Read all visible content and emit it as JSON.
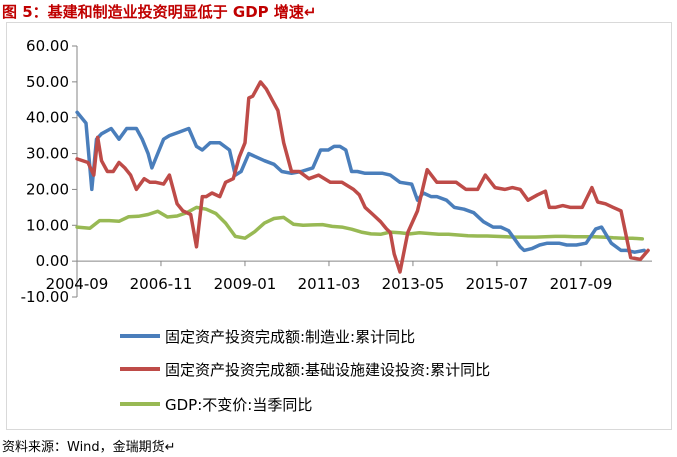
{
  "figure_title": "图 5：基建和制造业投资明显低于 GDP 增速↵",
  "source_note": "资料来源：Wind，金瑞期货↵",
  "chart_data": {
    "type": "line",
    "title": "",
    "xlabel": "",
    "ylabel": "",
    "ylim": [
      -10,
      60
    ],
    "yticks": [
      -10,
      0,
      10,
      20,
      30,
      40,
      50,
      60
    ],
    "ytick_labels": [
      "-10.00",
      "0.00",
      "10.00",
      "20.00",
      "30.00",
      "40.00",
      "50.00",
      "60.00"
    ],
    "xlim": [
      2004.667,
      2019.5
    ],
    "xticks": [
      2004.667,
      2006.833,
      2009.0,
      2011.167,
      2013.333,
      2015.5,
      2017.667
    ],
    "xtick_labels": [
      "2004-09",
      "2006-11",
      "2009-01",
      "2011-03",
      "2013-05",
      "2015-07",
      "2017-09"
    ],
    "grid": false,
    "legend_position": "bottom",
    "series": [
      {
        "name": "固定资产投资完成额:制造业:累计同比",
        "color": "#4a7ebb",
        "x": [
          2004.67,
          2004.9,
          2005.05,
          2005.17,
          2005.3,
          2005.55,
          2005.75,
          2005.95,
          2006.2,
          2006.35,
          2006.5,
          2006.6,
          2006.75,
          2006.9,
          2007.05,
          2007.3,
          2007.55,
          2007.75,
          2007.9,
          2008.1,
          2008.35,
          2008.6,
          2008.75,
          2008.9,
          2009.1,
          2009.3,
          2009.5,
          2009.75,
          2009.95,
          2010.2,
          2010.45,
          2010.75,
          2010.95,
          2011.15,
          2011.3,
          2011.45,
          2011.6,
          2011.75,
          2011.9,
          2012.1,
          2012.3,
          2012.55,
          2012.75,
          2013.0,
          2013.3,
          2013.45,
          2013.6,
          2013.8,
          2013.95,
          2014.2,
          2014.4,
          2014.65,
          2014.9,
          2015.15,
          2015.4,
          2015.6,
          2015.8,
          2016.1,
          2016.2,
          2016.4,
          2016.6,
          2016.8,
          2017.1,
          2017.3,
          2017.55,
          2017.8,
          2018.05,
          2018.2,
          2018.45,
          2018.7,
          2018.85,
          2019.05,
          2019.3
        ],
        "y": [
          41.5,
          38.5,
          20,
          34,
          35.5,
          37,
          34,
          37,
          37,
          34,
          30,
          26,
          30,
          34,
          35,
          36,
          37,
          32,
          31,
          33,
          33,
          31,
          24,
          25,
          30,
          29,
          28,
          27,
          25,
          24.5,
          25,
          26,
          31,
          31,
          32,
          32,
          31,
          25,
          25,
          24.5,
          24.5,
          24.5,
          24,
          22,
          21.5,
          17,
          19,
          18,
          18,
          17,
          15,
          14.5,
          13.5,
          11,
          9.5,
          9.5,
          8.5,
          4,
          3,
          3.5,
          4.5,
          5,
          5,
          4.5,
          4.5,
          5,
          9,
          9.5,
          5,
          3,
          3,
          2.5,
          3
        ]
      },
      {
        "name": "固定资产投资完成额:基础设施建设投资:累计同比",
        "color": "#be4b48",
        "x": [
          2004.67,
          2004.95,
          2005.1,
          2005.2,
          2005.3,
          2005.45,
          2005.6,
          2005.75,
          2005.9,
          2006.05,
          2006.2,
          2006.4,
          2006.55,
          2006.7,
          2006.9,
          2007.05,
          2007.25,
          2007.4,
          2007.6,
          2007.75,
          2007.9,
          2008.0,
          2008.15,
          2008.35,
          2008.5,
          2008.7,
          2008.85,
          2009.0,
          2009.1,
          2009.2,
          2009.4,
          2009.55,
          2009.7,
          2009.85,
          2010.0,
          2010.2,
          2010.4,
          2010.65,
          2010.9,
          2011.2,
          2011.5,
          2011.8,
          2011.95,
          2012.1,
          2012.3,
          2012.5,
          2012.65,
          2012.75,
          2012.85,
          2013.0,
          2013.2,
          2013.45,
          2013.7,
          2013.95,
          2014.2,
          2014.45,
          2014.7,
          2015.0,
          2015.2,
          2015.45,
          2015.7,
          2015.9,
          2016.1,
          2016.3,
          2016.55,
          2016.75,
          2016.85,
          2017.0,
          2017.2,
          2017.4,
          2017.7,
          2017.95,
          2018.1,
          2018.3,
          2018.5,
          2018.7,
          2018.95,
          2019.2,
          2019.4
        ],
        "y": [
          28.5,
          27.5,
          24,
          34.5,
          28,
          25,
          25,
          27.5,
          26,
          24,
          20,
          23,
          22,
          22,
          21.5,
          24,
          16,
          14,
          13,
          4,
          18,
          18,
          19,
          18,
          22,
          23,
          29,
          33,
          45.5,
          46,
          50,
          48,
          45,
          42,
          33,
          25,
          25,
          23,
          24,
          22,
          22,
          20,
          18.5,
          15,
          13,
          11,
          9,
          8,
          2,
          -3,
          8,
          14,
          25.5,
          22,
          22,
          22,
          20,
          20,
          24,
          20.5,
          20,
          20.5,
          20,
          17,
          18.5,
          19.5,
          15,
          15,
          15.5,
          15,
          15,
          20.5,
          16.5,
          16,
          15,
          14,
          1,
          0.5,
          3
        ]
      },
      {
        "name": "GDP:不变价:当季同比",
        "color": "#98b954",
        "x": [
          2004.67,
          2005.0,
          2005.25,
          2005.5,
          2005.75,
          2006.0,
          2006.25,
          2006.5,
          2006.75,
          2007.0,
          2007.25,
          2007.5,
          2007.75,
          2008.0,
          2008.25,
          2008.5,
          2008.75,
          2009.0,
          2009.25,
          2009.5,
          2009.75,
          2010.0,
          2010.25,
          2010.5,
          2010.75,
          2011.0,
          2011.25,
          2011.5,
          2011.75,
          2012.0,
          2012.25,
          2012.5,
          2012.75,
          2013.0,
          2013.25,
          2013.5,
          2013.75,
          2014.0,
          2014.25,
          2014.5,
          2014.75,
          2015.0,
          2015.25,
          2015.5,
          2015.75,
          2016.0,
          2016.25,
          2016.5,
          2016.75,
          2017.0,
          2017.25,
          2017.5,
          2017.75,
          2018.0,
          2018.25,
          2018.5,
          2018.75,
          2019.0,
          2019.25
        ],
        "y": [
          9.5,
          9.2,
          11.3,
          11.3,
          11.1,
          12.4,
          12.5,
          13.0,
          13.9,
          12.3,
          12.6,
          13.5,
          15.0,
          14.5,
          13.3,
          10.6,
          6.9,
          6.4,
          8.2,
          10.6,
          11.9,
          12.2,
          10.3,
          10.0,
          10.1,
          10.2,
          9.7,
          9.5,
          8.9,
          8.1,
          7.6,
          7.5,
          8.1,
          7.9,
          7.6,
          7.9,
          7.7,
          7.5,
          7.5,
          7.3,
          7.1,
          7.0,
          7.0,
          6.9,
          6.8,
          6.7,
          6.7,
          6.7,
          6.8,
          6.9,
          6.9,
          6.8,
          6.8,
          6.8,
          6.7,
          6.5,
          6.4,
          6.4,
          6.2
        ]
      }
    ]
  }
}
